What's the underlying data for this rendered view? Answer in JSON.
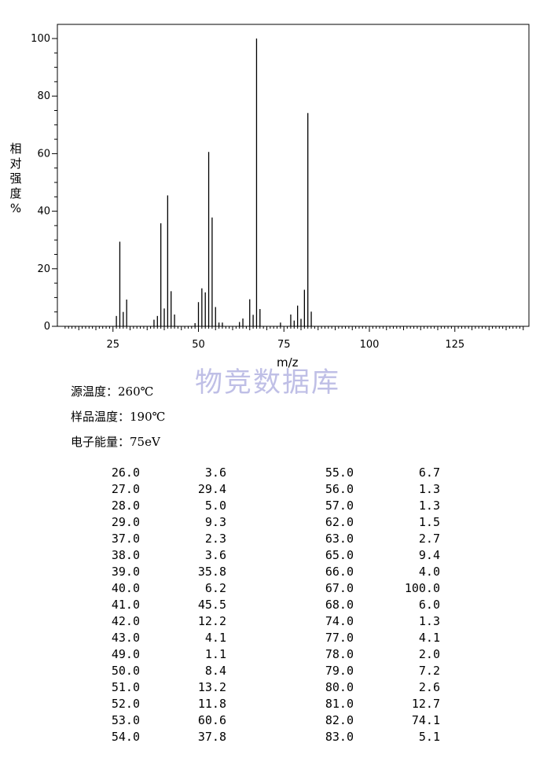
{
  "chart_data": {
    "type": "bar",
    "ylabel_chars": [
      "相",
      "对",
      "强",
      "度",
      "%"
    ],
    "xlabel": "m/z",
    "x_ticks": [
      25,
      50,
      75,
      100,
      125
    ],
    "y_ticks": [
      0,
      20,
      40,
      60,
      80,
      100
    ],
    "xlim": [
      10,
      145
    ],
    "ylim": [
      0,
      100
    ],
    "grid": false,
    "peaks": [
      {
        "mz": 26.0,
        "intensity": 3.6
      },
      {
        "mz": 27.0,
        "intensity": 29.4
      },
      {
        "mz": 28.0,
        "intensity": 5.0
      },
      {
        "mz": 29.0,
        "intensity": 9.3
      },
      {
        "mz": 37.0,
        "intensity": 2.3
      },
      {
        "mz": 38.0,
        "intensity": 3.6
      },
      {
        "mz": 39.0,
        "intensity": 35.8
      },
      {
        "mz": 40.0,
        "intensity": 6.2
      },
      {
        "mz": 41.0,
        "intensity": 45.5
      },
      {
        "mz": 42.0,
        "intensity": 12.2
      },
      {
        "mz": 43.0,
        "intensity": 4.1
      },
      {
        "mz": 49.0,
        "intensity": 1.1
      },
      {
        "mz": 50.0,
        "intensity": 8.4
      },
      {
        "mz": 51.0,
        "intensity": 13.2
      },
      {
        "mz": 52.0,
        "intensity": 11.8
      },
      {
        "mz": 53.0,
        "intensity": 60.6
      },
      {
        "mz": 54.0,
        "intensity": 37.8
      },
      {
        "mz": 55.0,
        "intensity": 6.7
      },
      {
        "mz": 56.0,
        "intensity": 1.3
      },
      {
        "mz": 57.0,
        "intensity": 1.3
      },
      {
        "mz": 62.0,
        "intensity": 1.5
      },
      {
        "mz": 63.0,
        "intensity": 2.7
      },
      {
        "mz": 65.0,
        "intensity": 9.4
      },
      {
        "mz": 66.0,
        "intensity": 4.0
      },
      {
        "mz": 67.0,
        "intensity": 100.0
      },
      {
        "mz": 68.0,
        "intensity": 6.0
      },
      {
        "mz": 74.0,
        "intensity": 1.3
      },
      {
        "mz": 77.0,
        "intensity": 4.1
      },
      {
        "mz": 78.0,
        "intensity": 2.0
      },
      {
        "mz": 79.0,
        "intensity": 7.2
      },
      {
        "mz": 80.0,
        "intensity": 2.6
      },
      {
        "mz": 81.0,
        "intensity": 12.7
      },
      {
        "mz": 82.0,
        "intensity": 74.1
      },
      {
        "mz": 83.0,
        "intensity": 5.1
      }
    ]
  },
  "watermark": "物竞数据库",
  "conditions": [
    {
      "label": "源温度：",
      "value": "260℃"
    },
    {
      "label": "样品温度：",
      "value": "190℃"
    },
    {
      "label": "电子能量：",
      "value": "75eV"
    }
  ],
  "peak_table": {
    "left": [
      [
        "26.0",
        "3.6"
      ],
      [
        "27.0",
        "29.4"
      ],
      [
        "28.0",
        "5.0"
      ],
      [
        "29.0",
        "9.3"
      ],
      [
        "37.0",
        "2.3"
      ],
      [
        "38.0",
        "3.6"
      ],
      [
        "39.0",
        "35.8"
      ],
      [
        "40.0",
        "6.2"
      ],
      [
        "41.0",
        "45.5"
      ],
      [
        "42.0",
        "12.2"
      ],
      [
        "43.0",
        "4.1"
      ],
      [
        "49.0",
        "1.1"
      ],
      [
        "50.0",
        "8.4"
      ],
      [
        "51.0",
        "13.2"
      ],
      [
        "52.0",
        "11.8"
      ],
      [
        "53.0",
        "60.6"
      ],
      [
        "54.0",
        "37.8"
      ]
    ],
    "right": [
      [
        "55.0",
        "6.7"
      ],
      [
        "56.0",
        "1.3"
      ],
      [
        "57.0",
        "1.3"
      ],
      [
        "62.0",
        "1.5"
      ],
      [
        "63.0",
        "2.7"
      ],
      [
        "65.0",
        "9.4"
      ],
      [
        "66.0",
        "4.0"
      ],
      [
        "67.0",
        "100.0"
      ],
      [
        "68.0",
        "6.0"
      ],
      [
        "74.0",
        "1.3"
      ],
      [
        "77.0",
        "4.1"
      ],
      [
        "78.0",
        "2.0"
      ],
      [
        "79.0",
        "7.2"
      ],
      [
        "80.0",
        "2.6"
      ],
      [
        "81.0",
        "12.7"
      ],
      [
        "82.0",
        "74.1"
      ],
      [
        "83.0",
        "5.1"
      ]
    ]
  }
}
